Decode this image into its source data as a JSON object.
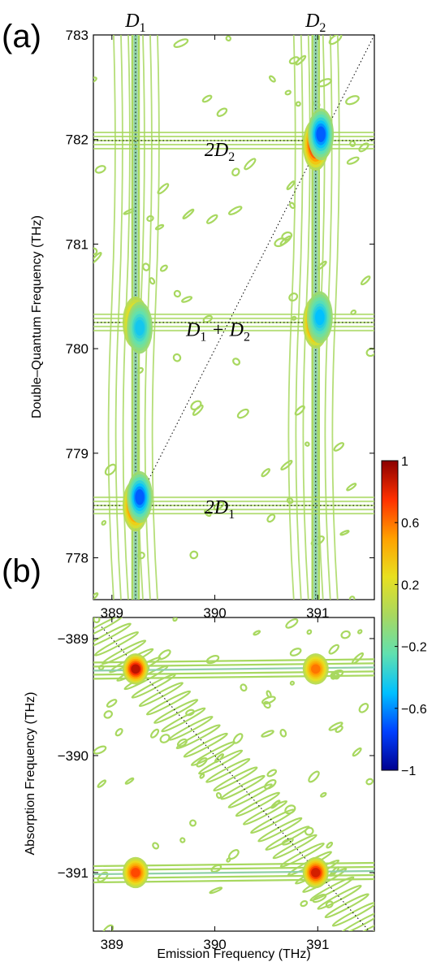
{
  "chart_data": [
    {
      "panel": "(a)",
      "type": "heatmap",
      "subtype": "filled contour map (2D double-quantum spectrum)",
      "xlabel": "",
      "ylabel": "Double–Quantum Frequency (THz)",
      "xlim": [
        388.82,
        391.55
      ],
      "ylim": [
        777.6,
        783.0
      ],
      "xticks": [
        "389",
        "390",
        "391"
      ],
      "xtick_values": [
        389,
        390,
        391
      ],
      "yticks": [
        "778",
        "779",
        "780",
        "781",
        "782",
        "783"
      ],
      "ytick_values": [
        778,
        779,
        780,
        781,
        782,
        783
      ],
      "top_labels": [
        {
          "text": "D",
          "sub": "1",
          "x": 389.23
        },
        {
          "text": "D",
          "sub": "2",
          "x": 390.98
        }
      ],
      "peak_labels": [
        {
          "text": "2D",
          "sub": "2",
          "x": 389.9,
          "y": 781.92
        },
        {
          "text": "D",
          "sub": "1",
          "suffix": " + D",
          "suffix_sub": "2",
          "x": 389.72,
          "y": 780.2
        },
        {
          "text": "2D",
          "sub": "1",
          "x": 389.9,
          "y": 778.5
        }
      ],
      "peaks": [
        {
          "x": 389.23,
          "y": 778.5,
          "value": 0.85
        },
        {
          "x": 389.27,
          "y": 778.58,
          "value": -0.7
        },
        {
          "x": 389.23,
          "y": 780.25,
          "value": 0.5
        },
        {
          "x": 389.27,
          "y": 780.2,
          "value": -0.45
        },
        {
          "x": 390.98,
          "y": 780.25,
          "value": 0.85
        },
        {
          "x": 391.02,
          "y": 780.3,
          "value": -0.5
        },
        {
          "x": 390.98,
          "y": 781.95,
          "value": 0.95
        },
        {
          "x": 391.03,
          "y": 782.05,
          "value": -0.7
        }
      ],
      "guides": {
        "vertical_x": [
          389.23,
          390.98
        ],
        "horizontal_y": [
          778.5,
          780.25,
          781.99
        ],
        "diagonal": [
          [
            389.23,
            778.5
          ],
          [
            391.55,
            783.0
          ]
        ]
      }
    },
    {
      "panel": "(b)",
      "type": "heatmap",
      "subtype": "filled contour map (2D one-quantum spectrum)",
      "xlabel": "Emission Frequency (THz)",
      "ylabel": "Absorption Frequency (THz)",
      "xlim": [
        388.82,
        391.55
      ],
      "ylim": [
        -391.5,
        -388.82
      ],
      "xticks": [
        "389",
        "390",
        "391"
      ],
      "xtick_values": [
        389,
        390,
        391
      ],
      "yticks": [
        "−389",
        "−390",
        "−391"
      ],
      "ytick_values": [
        -389,
        -390,
        -391
      ],
      "peaks": [
        {
          "x": 389.23,
          "y": -389.26,
          "value": 0.9
        },
        {
          "x": 390.98,
          "y": -389.26,
          "value": 0.6
        },
        {
          "x": 389.23,
          "y": -391.0,
          "value": 0.7
        },
        {
          "x": 390.98,
          "y": -391.0,
          "value": 0.85
        }
      ],
      "diagonal": [
        [
          388.9,
          -388.9
        ],
        [
          391.5,
          -391.5
        ]
      ]
    }
  ],
  "panel_labels": {
    "a": "(a)",
    "b": "(b)"
  },
  "colorbar": {
    "range": [
      -1,
      1
    ],
    "ticks": [
      "1",
      "0.6",
      "0.2",
      "−0.2",
      "−0.6",
      "−1"
    ],
    "tick_values": [
      1,
      0.6,
      0.2,
      -0.2,
      -0.6,
      -1
    ],
    "colormap": [
      "#00008f",
      "#0040ff",
      "#00c0ff",
      "#60e0b0",
      "#a8d860",
      "#e8e020",
      "#ffa000",
      "#ff3000",
      "#8b0000"
    ]
  },
  "colors": {
    "contour_base": "#a8d860",
    "contour_outline": "#9ccf5a",
    "background": "#ffffff"
  }
}
